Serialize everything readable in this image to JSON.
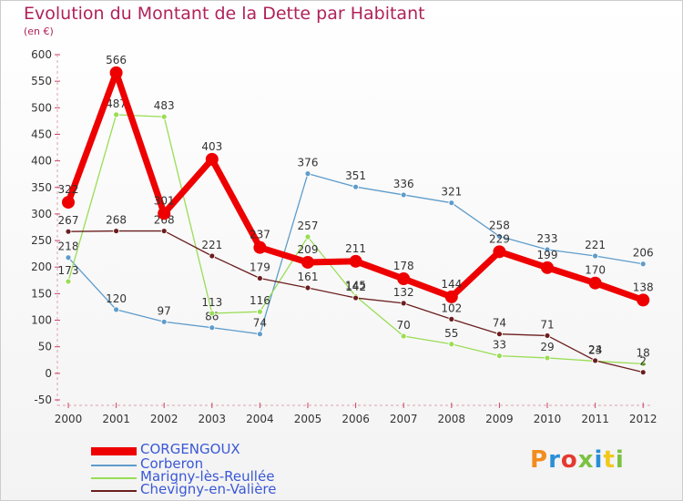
{
  "title": "Evolution du Montant de la Dette par Habitant",
  "subtitle": "(en €)",
  "logo": {
    "text": "Proxiti",
    "colors": [
      "#f28c1d",
      "#2a8fd8",
      "#e53a2f",
      "#7cc242",
      "#2a8fd8",
      "#f2c81d",
      "#7cc242"
    ]
  },
  "chart_data": {
    "type": "line",
    "x": [
      "2000",
      "2001",
      "2002",
      "2003",
      "2004",
      "2005",
      "2006",
      "2007",
      "2008",
      "2009",
      "2010",
      "2011",
      "2012"
    ],
    "ylim": [
      -50,
      600
    ],
    "yticks": [
      -50,
      0,
      50,
      100,
      150,
      200,
      250,
      300,
      350,
      400,
      450,
      500,
      550,
      600
    ],
    "grid": false,
    "legend_position": "bottom-left",
    "series": [
      {
        "name": "CORGENGOUX",
        "color": "#ee0000",
        "values": [
          322,
          566,
          301,
          403,
          237,
          209,
          211,
          178,
          144,
          229,
          199,
          170,
          138
        ]
      },
      {
        "name": "Corberon",
        "color": "#5e9ccb",
        "values": [
          218,
          120,
          97,
          86,
          74,
          376,
          351,
          336,
          321,
          258,
          233,
          221,
          206
        ]
      },
      {
        "name": "Marigny-lès-Reullée",
        "color": "#99dd55",
        "values": [
          173,
          487,
          483,
          113,
          116,
          257,
          145,
          70,
          55,
          33,
          29,
          23,
          18
        ]
      },
      {
        "name": "Chevigny-en-Valière",
        "color": "#6b1e1e",
        "values": [
          267,
          268,
          268,
          221,
          179,
          161,
          142,
          132,
          102,
          74,
          71,
          24,
          2
        ]
      }
    ]
  }
}
